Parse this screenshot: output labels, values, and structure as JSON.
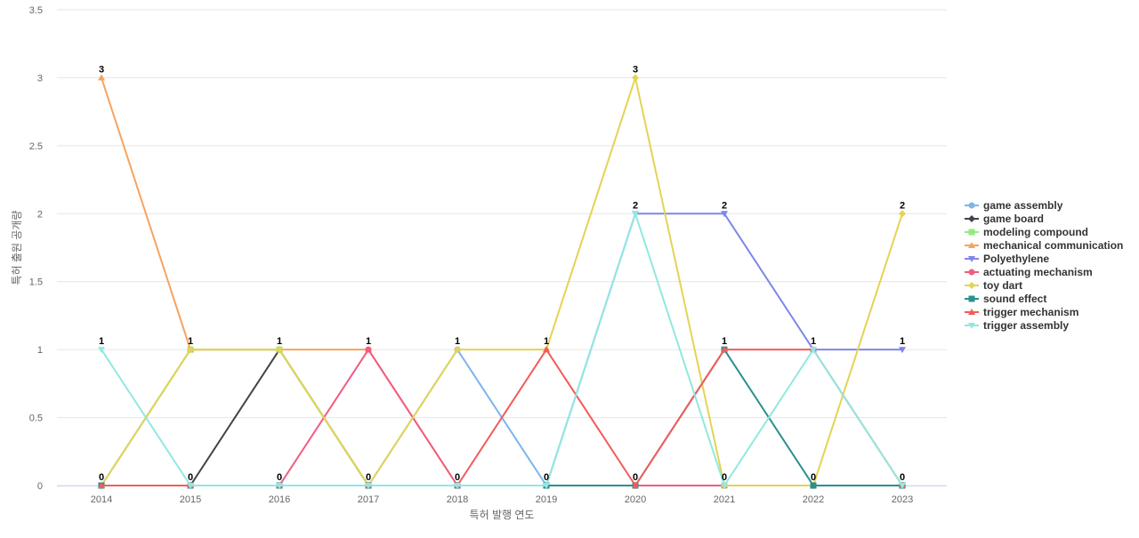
{
  "chart_data": {
    "type": "line",
    "title": "",
    "xlabel": "특허 발행 연도",
    "ylabel": "특허 출원 공개량",
    "ylim": [
      0,
      3.5
    ],
    "yticks": [
      "0",
      "0.5",
      "1",
      "1.5",
      "2",
      "2.5",
      "3",
      "3.5"
    ],
    "x": [
      "2014",
      "2015",
      "2016",
      "2017",
      "2018",
      "2019",
      "2020",
      "2021",
      "2022",
      "2023"
    ],
    "grid": true,
    "legend_position": "right",
    "data_labels": [
      {
        "x": "2014",
        "y": 3,
        "text": "3"
      },
      {
        "x": "2014",
        "y": 1,
        "text": "1"
      },
      {
        "x": "2014",
        "y": 0,
        "text": "0"
      },
      {
        "x": "2015",
        "y": 1,
        "text": "1"
      },
      {
        "x": "2015",
        "y": 0,
        "text": "0"
      },
      {
        "x": "2016",
        "y": 1,
        "text": "1"
      },
      {
        "x": "2016",
        "y": 0,
        "text": "0"
      },
      {
        "x": "2017",
        "y": 1,
        "text": "1"
      },
      {
        "x": "2017",
        "y": 0,
        "text": "0"
      },
      {
        "x": "2018",
        "y": 1,
        "text": "1"
      },
      {
        "x": "2018",
        "y": 0,
        "text": "0"
      },
      {
        "x": "2019",
        "y": 1,
        "text": "1"
      },
      {
        "x": "2019",
        "y": 0,
        "text": "0"
      },
      {
        "x": "2020",
        "y": 3,
        "text": "3"
      },
      {
        "x": "2020",
        "y": 2,
        "text": "2"
      },
      {
        "x": "2020",
        "y": 0,
        "text": "0"
      },
      {
        "x": "2021",
        "y": 2,
        "text": "2"
      },
      {
        "x": "2021",
        "y": 1,
        "text": "1"
      },
      {
        "x": "2021",
        "y": 0,
        "text": "0"
      },
      {
        "x": "2022",
        "y": 1,
        "text": "1"
      },
      {
        "x": "2022",
        "y": 0,
        "text": "0"
      },
      {
        "x": "2023",
        "y": 2,
        "text": "2"
      },
      {
        "x": "2023",
        "y": 1,
        "text": "1"
      },
      {
        "x": "2023",
        "y": 0,
        "text": "0"
      }
    ],
    "series": [
      {
        "name": "game assembly",
        "color": "#7cb5ec",
        "marker": "circle",
        "values": [
          0,
          1,
          1,
          0,
          1,
          0,
          0,
          0,
          0,
          0
        ]
      },
      {
        "name": "game board",
        "color": "#434348",
        "marker": "diamond",
        "values": [
          0,
          0,
          1,
          0,
          0,
          0,
          0,
          0,
          0,
          0
        ]
      },
      {
        "name": "modeling compound",
        "color": "#90ed7d",
        "marker": "square",
        "values": [
          0,
          1,
          1,
          0,
          0,
          0,
          0,
          0,
          0,
          0
        ]
      },
      {
        "name": "mechanical communication",
        "color": "#f7a35c",
        "marker": "triangle",
        "values": [
          3,
          1,
          1,
          1,
          0,
          0,
          0,
          0,
          0,
          0
        ]
      },
      {
        "name": "Polyethylene",
        "color": "#8085e9",
        "marker": "triangle-down",
        "values": [
          0,
          0,
          0,
          0,
          0,
          0,
          2,
          2,
          1,
          1
        ]
      },
      {
        "name": "actuating mechanism",
        "color": "#f15c80",
        "marker": "circle",
        "values": [
          0,
          0,
          0,
          1,
          0,
          0,
          0,
          0,
          0,
          0
        ]
      },
      {
        "name": "toy dart",
        "color": "#e4d354",
        "marker": "diamond",
        "values": [
          0,
          1,
          1,
          0,
          1,
          1,
          3,
          0,
          0,
          2
        ]
      },
      {
        "name": "sound effect",
        "color": "#2b908f",
        "marker": "square",
        "values": [
          0,
          0,
          0,
          0,
          0,
          0,
          0,
          1,
          0,
          0
        ]
      },
      {
        "name": "trigger mechanism",
        "color": "#f45b5b",
        "marker": "triangle",
        "values": [
          0,
          0,
          0,
          0,
          0,
          1,
          0,
          1,
          1,
          0
        ]
      },
      {
        "name": "trigger assembly",
        "color": "#91e8e1",
        "marker": "triangle-down",
        "values": [
          1,
          0,
          0,
          0,
          0,
          0,
          2,
          0,
          1,
          0
        ]
      }
    ]
  }
}
